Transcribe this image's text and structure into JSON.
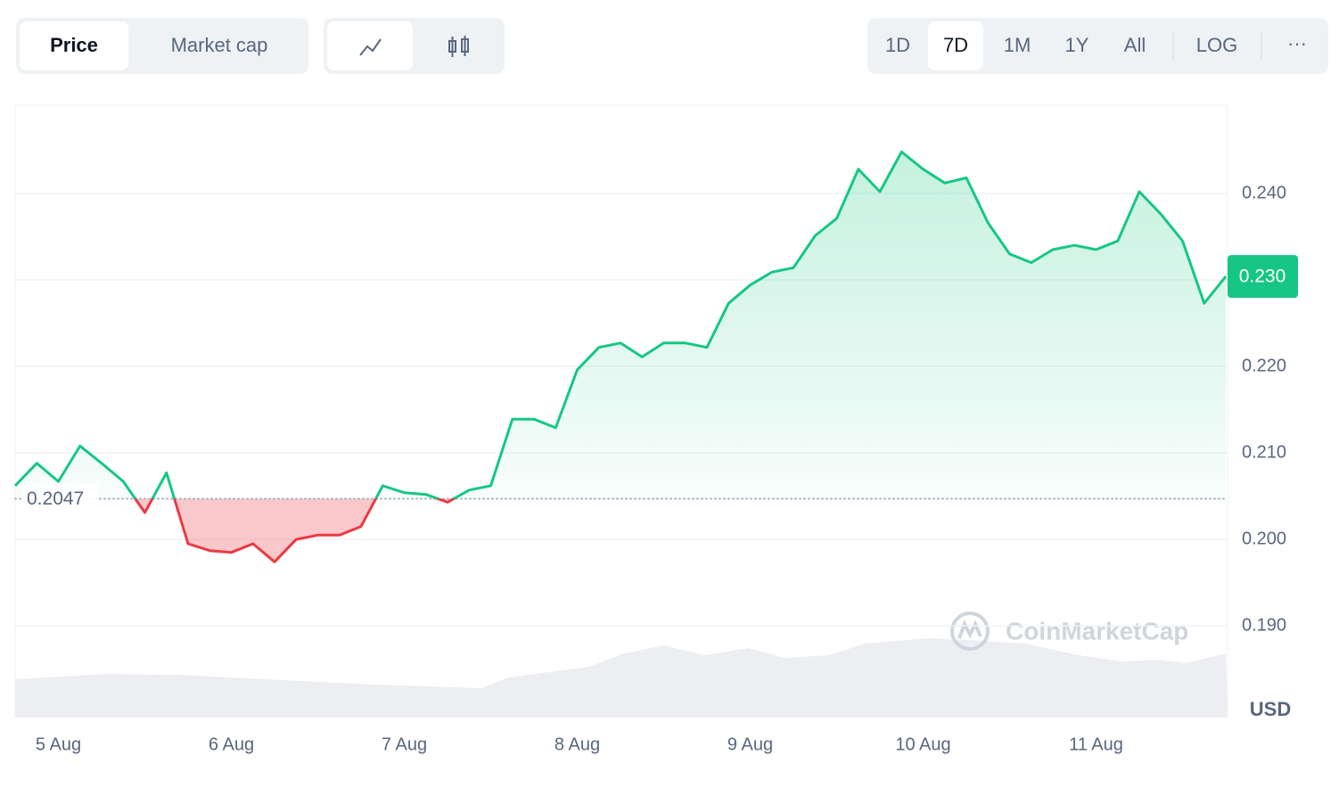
{
  "controls": {
    "view_tabs": [
      "Price",
      "Market cap"
    ],
    "ranges": [
      "1D",
      "7D",
      "1M",
      "1Y",
      "All"
    ],
    "log": "LOG",
    "more": "···"
  },
  "chart_data": {
    "type": "line",
    "categories": [
      null,
      null,
      "5 Aug",
      null,
      null,
      null,
      null,
      null,
      null,
      null,
      "6 Aug",
      null,
      null,
      null,
      null,
      null,
      null,
      null,
      "7 Aug",
      null,
      null,
      null,
      null,
      null,
      null,
      null,
      "8 Aug",
      null,
      null,
      null,
      null,
      null,
      null,
      null,
      "9 Aug",
      null,
      null,
      null,
      null,
      null,
      null,
      null,
      "10 Aug",
      null,
      null,
      null,
      null,
      null,
      null,
      null,
      "11 Aug",
      null,
      null,
      null,
      null,
      null,
      null
    ],
    "values": [
      0.2062,
      0.2088,
      0.2067,
      0.2108,
      0.2088,
      0.2067,
      0.2031,
      0.2077,
      0.1995,
      0.1987,
      0.1985,
      0.1995,
      0.1974,
      0.2,
      0.2005,
      0.2005,
      0.2015,
      0.2062,
      0.2054,
      0.2052,
      0.2043,
      0.2057,
      0.2062,
      0.2139,
      0.2139,
      0.2129,
      0.2196,
      0.2222,
      0.2227,
      0.2211,
      0.2227,
      0.2227,
      0.2222,
      0.2273,
      0.2294,
      0.2309,
      0.2314,
      0.2351,
      0.2371,
      0.2428,
      0.2402,
      0.2448,
      0.2428,
      0.2412,
      0.2418,
      0.2366,
      0.233,
      0.232,
      0.2335,
      0.234,
      0.2335,
      0.2345,
      0.2402,
      0.2376,
      0.2345,
      0.2273,
      0.2304
    ],
    "color": "#16c784",
    "down_color": "#ea3943",
    "baseline": 0.2047,
    "current_price": {
      "value": 0.2304,
      "label": "0.230"
    },
    "ylim": [
      0.1794,
      0.2502
    ],
    "yticks": [
      {
        "value": 0.19,
        "label": "0.190"
      },
      {
        "value": 0.2,
        "label": "0.200"
      },
      {
        "value": 0.21,
        "label": "0.210"
      },
      {
        "value": 0.22,
        "label": "0.220"
      },
      {
        "value": 0.23,
        "label": "0.230"
      },
      {
        "value": 0.24,
        "label": "0.240"
      }
    ],
    "grid": true,
    "y_unit": "USD",
    "watermark": "CoinMarketCap"
  }
}
